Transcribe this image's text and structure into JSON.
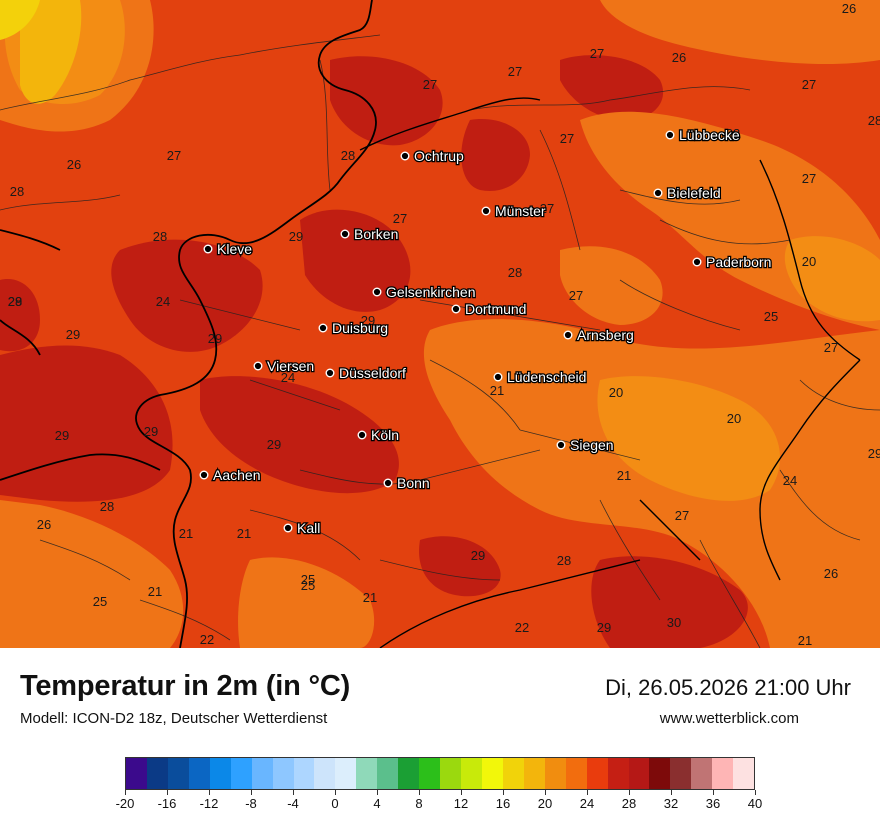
{
  "title": "Temperatur in 2m (in °C)",
  "subtitle": "Modell: ICON-D2 18z, Deutscher Wetterdienst",
  "datetime": "Di, 26.05.2026 21:00 Uhr",
  "website": "www.wetterblick.com",
  "legend": {
    "colors": [
      "#3b0a8c",
      "#0b3a86",
      "#0a4d9c",
      "#0b66c3",
      "#0b88e8",
      "#2ea1ff",
      "#69b6ff",
      "#8ec7ff",
      "#add6ff",
      "#cde4fb",
      "#dceefc",
      "#8fd9b9",
      "#5bbf8c",
      "#1b9f34",
      "#2cbf1a",
      "#9bd90e",
      "#c8ea0a",
      "#f2f70a",
      "#f1d30a",
      "#f3b50c",
      "#f18d0f",
      "#f26d0e",
      "#e93c0d",
      "#c51f14",
      "#b51816",
      "#7d0a0a",
      "#8a2f2f",
      "#c07474",
      "#feb5b5",
      "#fde1e1"
    ],
    "ticks": [
      "-20",
      "-16",
      "-12",
      "-8",
      "-4",
      "0",
      "4",
      "8",
      "12",
      "16",
      "20",
      "24",
      "28",
      "32",
      "36",
      "40"
    ]
  },
  "cities": [
    {
      "name": "Ochtrup"
    },
    {
      "name": "Lübbecke"
    },
    {
      "name": "Bielefeld"
    },
    {
      "name": "Münster"
    },
    {
      "name": "Borken"
    },
    {
      "name": "Kleve"
    },
    {
      "name": "Paderborn"
    },
    {
      "name": "Gelsenkirchen"
    },
    {
      "name": "Dortmund"
    },
    {
      "name": "Duisburg"
    },
    {
      "name": "Arnsberg"
    },
    {
      "name": "Viersen"
    },
    {
      "name": "Düsseldorf"
    },
    {
      "name": "Lüdenscheid"
    },
    {
      "name": "Köln"
    },
    {
      "name": "Siegen"
    },
    {
      "name": "Aachen"
    },
    {
      "name": "Bonn"
    },
    {
      "name": "Kall"
    }
  ],
  "values": [
    "26",
    "27",
    "26",
    "27",
    "27",
    "27",
    "28",
    "26",
    "27",
    "28",
    "27",
    "28",
    "27",
    "28",
    "27",
    "29",
    "28",
    "27",
    "20",
    "29",
    "24",
    "29",
    "25",
    "29",
    "27",
    "29",
    "21",
    "20",
    "20",
    "29",
    "29",
    "29",
    "27",
    "24",
    "25",
    "28",
    "21",
    "21",
    "27",
    "21",
    "21",
    "25",
    "29",
    "28",
    "26",
    "26",
    "25",
    "21",
    "22",
    "22",
    "29",
    "30",
    "21",
    "24",
    "29",
    "28",
    "28"
  ],
  "colors": {
    "background": "#e2410f",
    "dark": "#c01e12",
    "orange": "#ef7417",
    "light_orange": "#f38d14",
    "yellow": "#f3d10b"
  }
}
